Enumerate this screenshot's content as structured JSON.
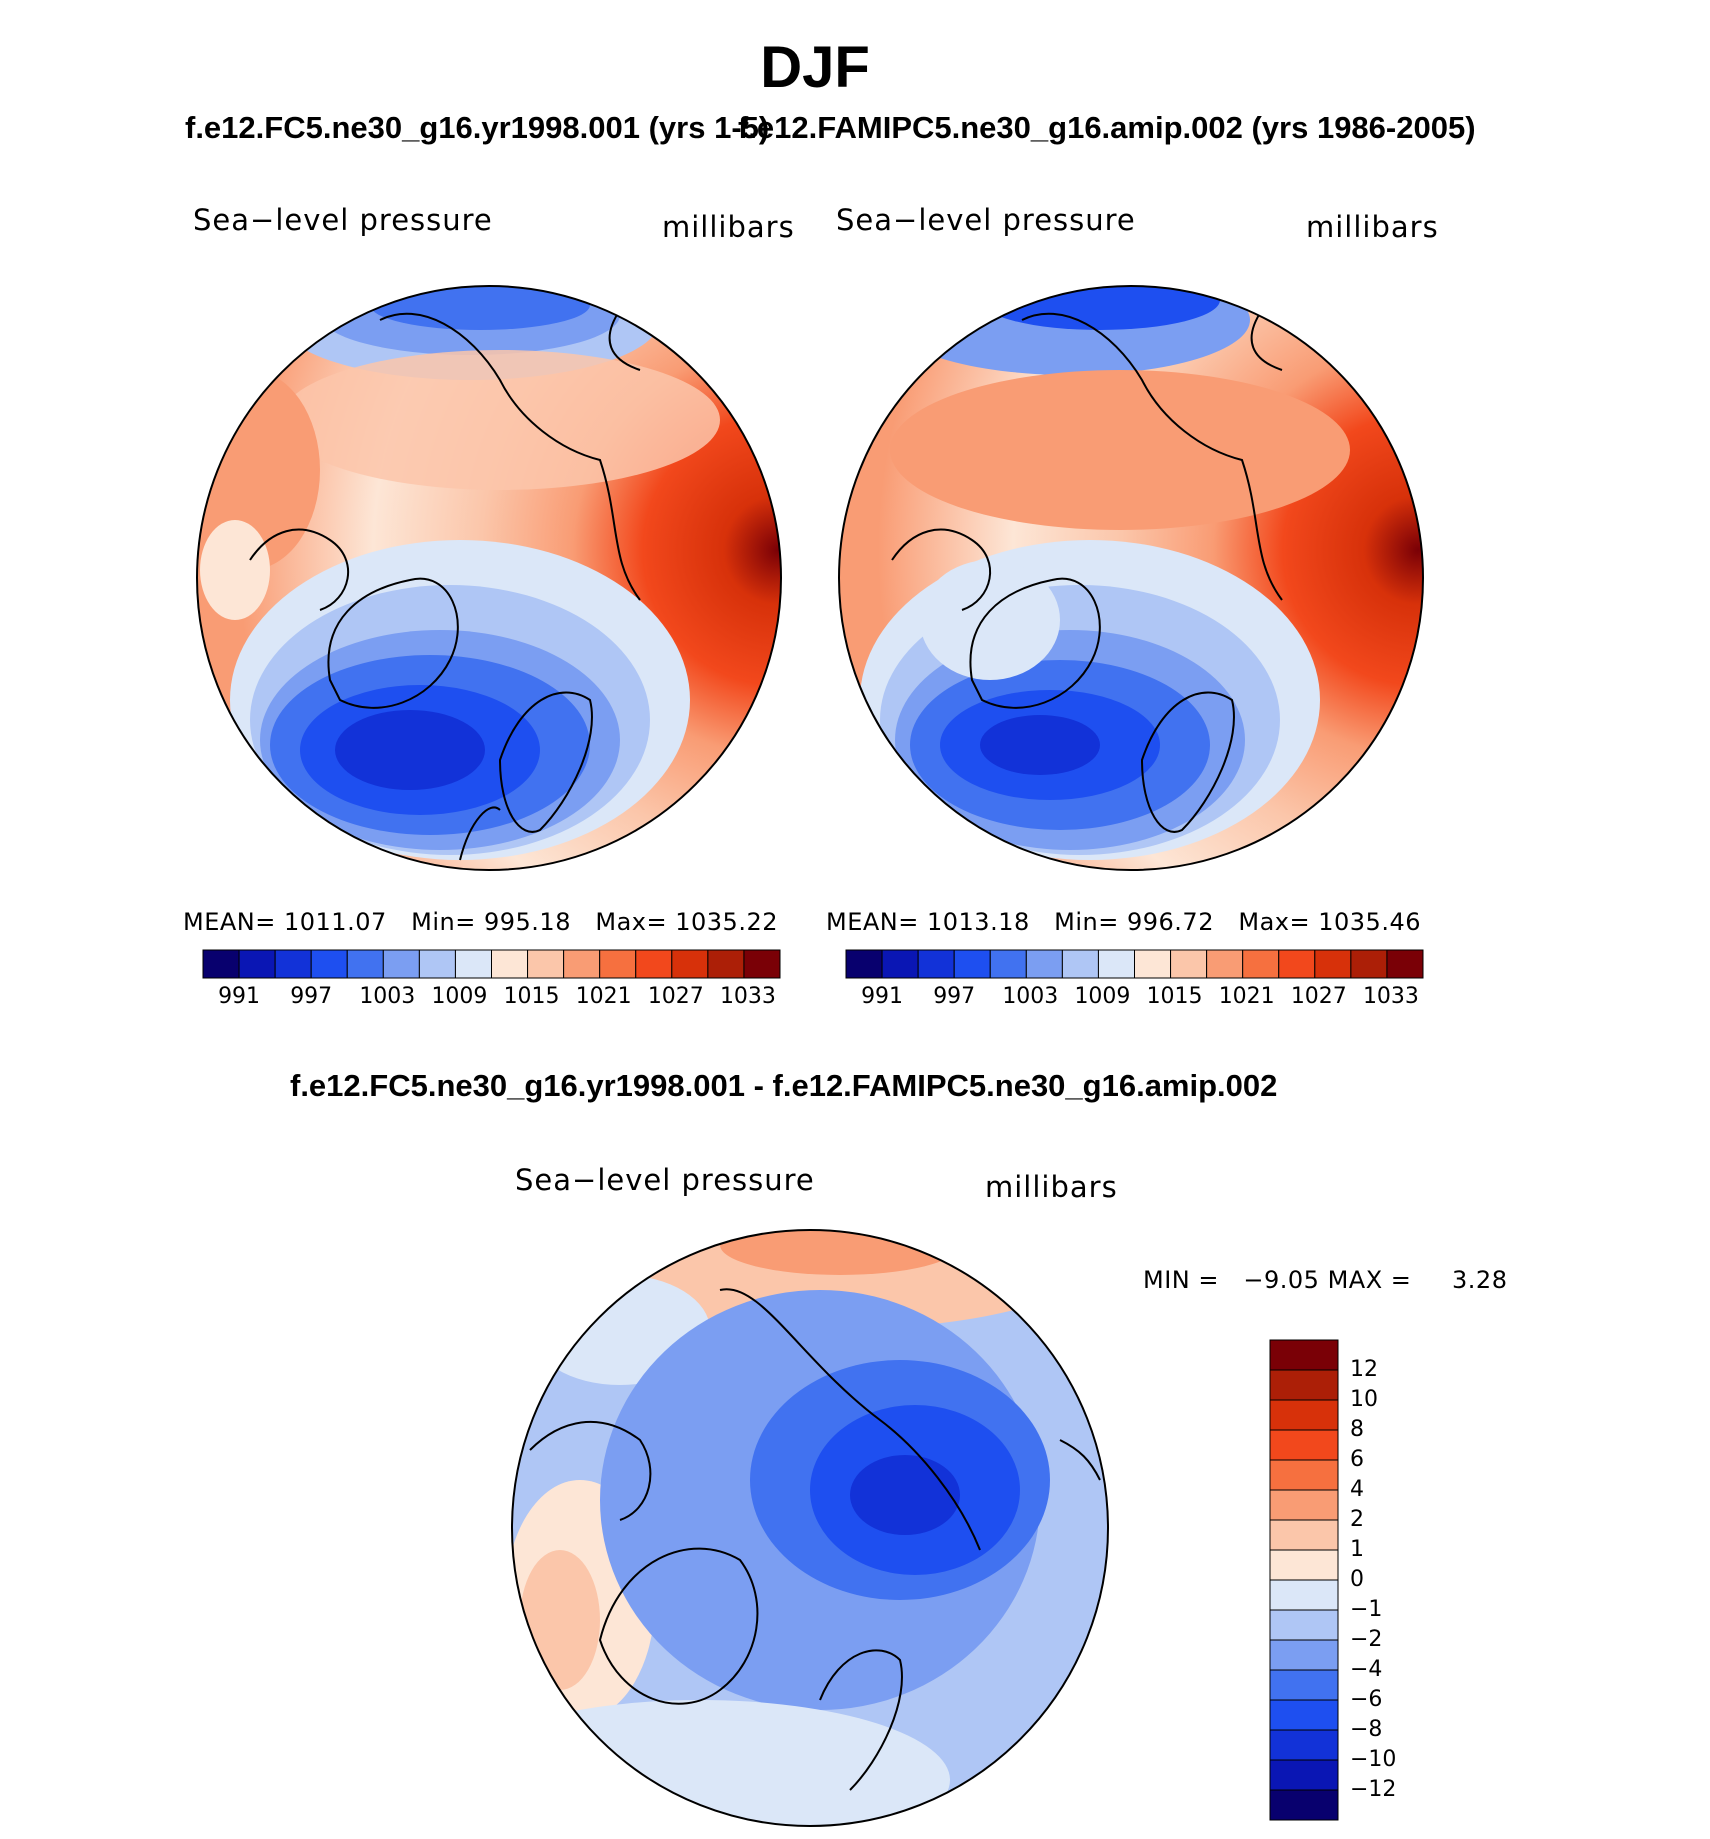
{
  "title": "DJF",
  "panels": [
    {
      "subtitle": "f.e12.FC5.ne30_g16.yr1998.001 (yrs 1-5)",
      "variable": "Sea−level pressure",
      "units": "millibars",
      "stats": {
        "mean_label": "MEAN=",
        "mean": "1011.07",
        "min_label": "Min=",
        "min": "995.18",
        "max_label": "Max=",
        "max": "1035.22"
      }
    },
    {
      "subtitle": "f.e12.FAMIPC5.ne30_g16.amip.002 (yrs 1986-2005)",
      "variable": "Sea−level pressure",
      "units": "millibars",
      "stats": {
        "mean_label": "MEAN=",
        "mean": "1013.18",
        "min_label": "Min=",
        "min": "996.72",
        "max_label": "Max=",
        "max": "1035.46"
      }
    },
    {
      "subtitle": "f.e12.FC5.ne30_g16.yr1998.001 - f.e12.FAMIPC5.ne30_g16.amip.002",
      "variable": "Sea−level pressure",
      "units": "millibars",
      "stats": {
        "min_label": "MIN =",
        "min": "−9.05",
        "max_label": "MAX =",
        "max": "3.28"
      }
    }
  ],
  "colorbar_abs": {
    "colors": [
      "#08006e",
      "#0a16b4",
      "#1232d8",
      "#1e4ff0",
      "#4172f0",
      "#7b9ef2",
      "#afc6f5",
      "#dbe7f8",
      "#fde6d6",
      "#fbc6aa",
      "#f99c74",
      "#f6703f",
      "#f2481c",
      "#d7310a",
      "#ac1f07",
      "#7a0006"
    ],
    "labels": [
      "991",
      "997",
      "1003",
      "1009",
      "1015",
      "1021",
      "1027",
      "1033"
    ]
  },
  "colorbar_diff": {
    "colors": [
      "#7a0006",
      "#ac1f07",
      "#d7310a",
      "#f2481c",
      "#f6703f",
      "#f99c74",
      "#fbc6aa",
      "#fde6d6",
      "#dbe7f8",
      "#afc6f5",
      "#7b9ef2",
      "#4172f0",
      "#1e4ff0",
      "#1232d8",
      "#0a16b4",
      "#08006e"
    ],
    "labels": [
      "12",
      "10",
      "8",
      "6",
      "4",
      "2",
      "1",
      "0",
      "−1",
      "−2",
      "−4",
      "−6",
      "−8",
      "−10",
      "−12"
    ]
  }
}
